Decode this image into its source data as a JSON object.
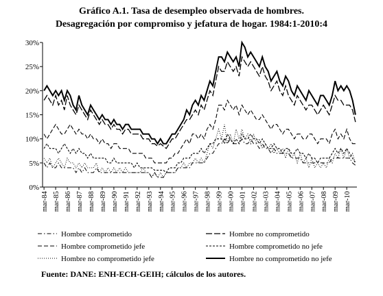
{
  "chart_data": {
    "type": "line",
    "title": "Gráfico A.1. Tasa de desempleo observada de hombres.",
    "subtitle": "Desagregación por compromiso y jefatura de hogar. 1984:1-2010:4",
    "source": "Fuente: DANE: ENH-ECH-GEIH; cálculos de los autores.",
    "categories": [
      "mar-84",
      null,
      null,
      null,
      "mar-85",
      null,
      null,
      null,
      "mar-86",
      null,
      null,
      null,
      "mar-87",
      null,
      null,
      null,
      "mar-88",
      null,
      null,
      null,
      "mar-89",
      null,
      null,
      null,
      "mar-90",
      null,
      null,
      null,
      "mar-91",
      null,
      null,
      null,
      "mar-92",
      null,
      null,
      null,
      "mar-93",
      null,
      null,
      null,
      "mar-94",
      null,
      null,
      null,
      "mar-95",
      null,
      null,
      null,
      "mar-96",
      null,
      null,
      null,
      "mar-97",
      null,
      null,
      null,
      "mar-98",
      null,
      null,
      null,
      "mar-99",
      null,
      null,
      null,
      "mar-00",
      null,
      null,
      null,
      "mar-01",
      null,
      null,
      null,
      "mar-02",
      null,
      null,
      null,
      "mar-03",
      null,
      null,
      null,
      "mar-04",
      null,
      null,
      null,
      "mar-05",
      null,
      null,
      null,
      "mar-06",
      null,
      null,
      null,
      "mar-07",
      null,
      null,
      null,
      "mar-08",
      null,
      null,
      null,
      "mar-09",
      null,
      null,
      null,
      "mar-10",
      null,
      null,
      null
    ],
    "ylim": [
      0,
      30
    ],
    "yticks": [
      {
        "value": 0,
        "label": "0%"
      },
      {
        "value": 5,
        "label": "5%"
      },
      {
        "value": 10,
        "label": "10%"
      },
      {
        "value": 15,
        "label": "15%"
      },
      {
        "value": 20,
        "label": "20%"
      },
      {
        "value": 25,
        "label": "25%"
      },
      {
        "value": 30,
        "label": "30%"
      }
    ],
    "series": [
      {
        "name": "Hombre comprometido",
        "color": "#000000",
        "dash": "6 3 1.5 3",
        "width": 1,
        "values": [
          5,
          4,
          5,
          4,
          4,
          5,
          4,
          4,
          4,
          4,
          4,
          3,
          4,
          3,
          4,
          3,
          3,
          3,
          4,
          3,
          3,
          3,
          3,
          3,
          3,
          3,
          3,
          3,
          3,
          3,
          3,
          3,
          3,
          3,
          3,
          3,
          3,
          2,
          3,
          2,
          2,
          2,
          3,
          3,
          3,
          3,
          4,
          4,
          4,
          4,
          4,
          5,
          5,
          5,
          5,
          5,
          6,
          7,
          7,
          8,
          9,
          9,
          10,
          9,
          10,
          9,
          9,
          9,
          10,
          9,
          9,
          10,
          9,
          9,
          8,
          9,
          8,
          8,
          7,
          8,
          7,
          7,
          7,
          7,
          7,
          6,
          6,
          6,
          6,
          5,
          5,
          5,
          5,
          5,
          5,
          5,
          5,
          5,
          5,
          6,
          6,
          6,
          6,
          6,
          6,
          6,
          5,
          4.5
        ]
      },
      {
        "name": "Hombre no comprometido",
        "color": "#000000",
        "dash": "9 3",
        "width": 1.3,
        "values": [
          18,
          19,
          18,
          17,
          19,
          17,
          18,
          16,
          19,
          17,
          16,
          15,
          17,
          16,
          15,
          14,
          16,
          15,
          14,
          13,
          14,
          13,
          13,
          12,
          13,
          12,
          12,
          11,
          12,
          12,
          11,
          11,
          11,
          11,
          10,
          10,
          10,
          9,
          9,
          8.5,
          9,
          8.5,
          8,
          9,
          10,
          10,
          11,
          12,
          13,
          14,
          14,
          15,
          16,
          15,
          17,
          16,
          18,
          20,
          19,
          22,
          25,
          24,
          24,
          26,
          25,
          24,
          25,
          23,
          27,
          26,
          25,
          26,
          25,
          24,
          23,
          25,
          23,
          22,
          20,
          21,
          22,
          20,
          19,
          21,
          19,
          18,
          17,
          19,
          18,
          17,
          16,
          17,
          17,
          16,
          15,
          16,
          17,
          16,
          15,
          17,
          19,
          18,
          18,
          17,
          17,
          17,
          16,
          13.5
        ]
      },
      {
        "name": "Hombre comprometido jefe",
        "color": "#000000",
        "dash": "6 3",
        "width": 1.1,
        "values": [
          11,
          10,
          11,
          12,
          13,
          12,
          11,
          11,
          12,
          13,
          12,
          11,
          12,
          11,
          11,
          10,
          11,
          10,
          10,
          9,
          10,
          9,
          9,
          8,
          9,
          9,
          8,
          8,
          8,
          8,
          7,
          7,
          7,
          7,
          7,
          6,
          6,
          6,
          5,
          5,
          5,
          5,
          5,
          6,
          6,
          7,
          7,
          8,
          9,
          10,
          9,
          11,
          11,
          10,
          11,
          10,
          12,
          13,
          12,
          14,
          17,
          17,
          16,
          18,
          17,
          16,
          17,
          15,
          17,
          16,
          15,
          16,
          15,
          14,
          14,
          15,
          14,
          13,
          12,
          13,
          13,
          12,
          11,
          12,
          12,
          11,
          10,
          11,
          11,
          10,
          10,
          11,
          11,
          10,
          9,
          10,
          10,
          10,
          9,
          11,
          12,
          10,
          11,
          10,
          12,
          10,
          9,
          9
        ]
      },
      {
        "name": "Hombre comprometido no jefe",
        "color": "#000000",
        "dash": "3 2",
        "width": 1.1,
        "values": [
          8,
          9,
          8,
          8,
          8,
          7,
          8,
          9,
          8,
          7,
          8,
          7,
          8,
          7,
          7,
          6,
          7,
          6,
          6,
          6,
          6,
          6,
          5,
          5,
          6,
          5,
          5,
          5,
          5,
          5,
          5,
          4,
          5,
          4,
          4,
          4,
          4,
          4,
          3.5,
          3.5,
          3.5,
          3.5,
          3,
          4,
          4,
          4,
          5,
          5,
          6,
          6,
          6,
          7,
          7,
          7,
          8,
          7,
          8,
          9,
          9,
          10,
          10,
          10,
          9,
          11,
          10,
          9,
          10,
          9,
          11,
          10,
          10,
          11,
          10,
          10,
          9,
          10,
          9,
          8,
          8,
          9,
          8,
          8,
          7,
          8,
          8,
          7,
          7,
          8,
          7,
          7,
          6,
          7,
          6,
          6,
          5,
          6,
          6,
          6,
          6,
          7,
          8,
          7,
          8,
          7,
          8,
          7,
          6,
          5
        ]
      },
      {
        "name": "Hombre no comprometido jefe",
        "color": "#000000",
        "dash": "1 2",
        "width": 1,
        "values": [
          6,
          5,
          6,
          4,
          5,
          6,
          5,
          4,
          6,
          5,
          5,
          4,
          5,
          4,
          5,
          4,
          4,
          4,
          5,
          3,
          4,
          3,
          4,
          3,
          4,
          3,
          4,
          3,
          4,
          3,
          3,
          3,
          3,
          3,
          4,
          3,
          3,
          2,
          3,
          2,
          3,
          2,
          3,
          3,
          3,
          3,
          4,
          4,
          5,
          4,
          5,
          5,
          6,
          5,
          6,
          5,
          7,
          9,
          8,
          10,
          12,
          10,
          13,
          9,
          11,
          9,
          12,
          10,
          12,
          10,
          11,
          9,
          11,
          9,
          10,
          8,
          9,
          8,
          9,
          7,
          8,
          7,
          8,
          6,
          8,
          6,
          7,
          5,
          7,
          5,
          6,
          4,
          6,
          4,
          5,
          4,
          5,
          4,
          6,
          5,
          7,
          6,
          8,
          6,
          8,
          6,
          7,
          5
        ]
      },
      {
        "name": "Hombre no comprometido no jefe",
        "color": "#000000",
        "dash": "",
        "width": 2,
        "values": [
          20,
          21,
          20,
          19,
          20,
          19,
          20,
          18,
          20,
          19,
          17,
          16,
          19,
          17,
          16,
          15,
          17,
          16,
          15,
          14,
          15,
          14,
          14,
          13,
          14,
          13,
          13,
          12,
          13,
          13,
          12,
          12,
          12,
          12,
          11,
          11,
          11,
          10,
          10,
          9,
          10,
          9,
          9,
          10,
          11,
          11,
          12,
          13,
          14,
          16,
          15,
          17,
          18,
          17,
          19,
          18,
          20,
          22,
          21,
          24,
          27,
          27,
          26,
          28,
          27,
          26,
          27,
          25,
          30,
          29,
          27,
          28,
          27,
          26,
          25,
          27,
          25,
          24,
          22,
          23,
          24,
          22,
          21,
          23,
          22,
          20,
          19,
          21,
          20,
          19,
          18,
          20,
          19,
          18,
          17,
          19,
          19,
          18,
          17,
          19,
          22,
          20,
          21,
          20,
          21,
          20,
          18,
          15
        ]
      }
    ]
  }
}
